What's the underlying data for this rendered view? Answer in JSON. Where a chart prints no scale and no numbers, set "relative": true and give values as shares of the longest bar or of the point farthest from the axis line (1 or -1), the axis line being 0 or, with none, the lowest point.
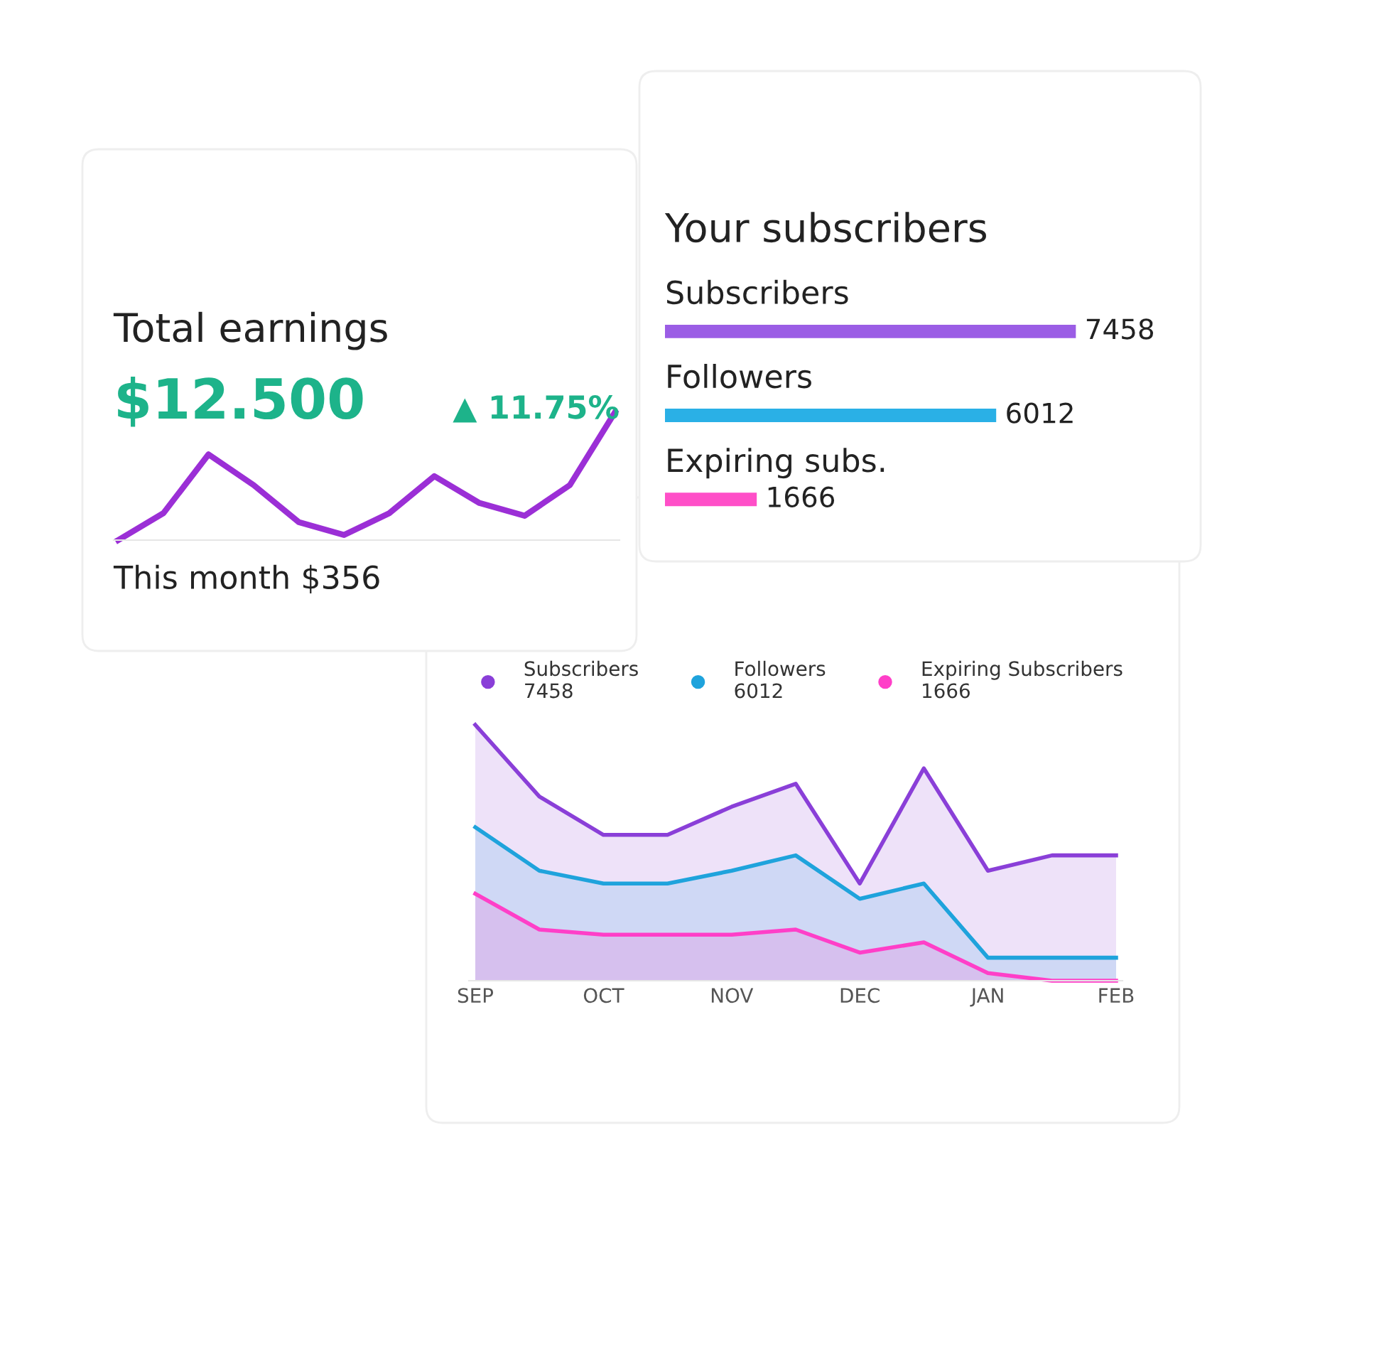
{
  "chart_data": [
    {
      "type": "line",
      "title": "Total earnings",
      "relative": true,
      "categories": [
        null,
        null,
        null,
        null,
        null,
        null,
        null,
        null,
        null,
        null,
        null,
        null
      ],
      "series": [
        {
          "color": "#9b2fd6",
          "values": [
            0,
            0.21,
            0.67,
            0.43,
            0.14,
            0.04,
            0.21,
            0.5,
            0.29,
            0.19,
            0.43,
            1.0
          ]
        }
      ],
      "annotations": [
        "$12.500",
        "▲ 11.75%",
        "This month $356"
      ]
    },
    {
      "type": "bar",
      "orientation": "horizontal",
      "title": "Your subscribers",
      "categories": [
        "Subscribers",
        "Followers",
        "Expiring subs."
      ],
      "values": [
        7458,
        6012,
        1666
      ],
      "colors": [
        "#9b5de5",
        "#2ab0e6",
        "#ff4fc8"
      ],
      "data_labels": true
    },
    {
      "type": "area",
      "relative": true,
      "categories": [
        "SEP",
        null,
        "OCT",
        null,
        "NOV",
        null,
        "DEC",
        null,
        "JAN",
        null,
        "FEB"
      ],
      "series": [
        {
          "name": "Subscribers",
          "color": "#8a3fd8",
          "values": [
            1.0,
            0.72,
            0.57,
            0.57,
            0.68,
            0.77,
            0.38,
            0.83,
            0.43,
            0.49,
            0.49
          ]
        },
        {
          "name": "Followers",
          "color": "#1fa3dc",
          "values": [
            0.6,
            0.43,
            0.38,
            0.38,
            0.43,
            0.49,
            0.32,
            0.38,
            0.09,
            0.09,
            0.09
          ]
        },
        {
          "name": "Expiring Subscribers",
          "color": "#ff3fc8",
          "values": [
            0.34,
            0.2,
            0.18,
            0.18,
            0.18,
            0.2,
            0.11,
            0.15,
            0.03,
            0.0,
            0.0
          ]
        }
      ],
      "annotations": [
        "7458",
        "6012",
        "1666"
      ],
      "legend": "top",
      "grid": false
    }
  ]
}
